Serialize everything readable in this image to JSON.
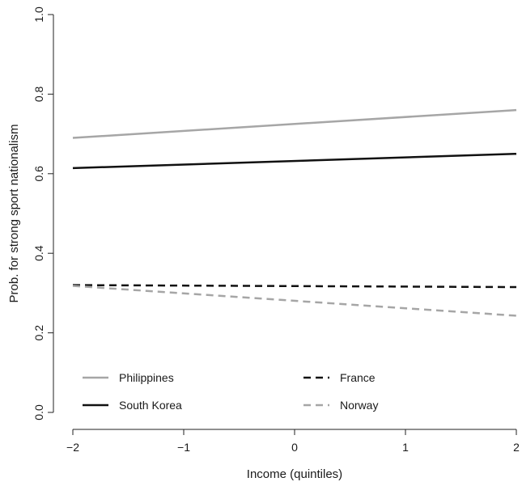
{
  "chart_data": {
    "type": "line",
    "xlabel": "Income (quintiles)",
    "ylabel": "Prob. for strong sport nationalism",
    "xlim": [
      -2,
      2
    ],
    "ylim": [
      0,
      1
    ],
    "x_ticks": [
      -2,
      -1,
      0,
      1,
      2
    ],
    "x_tick_labels": [
      "−2",
      "−1",
      "0",
      "1",
      "2"
    ],
    "y_ticks": [
      0,
      0.2,
      0.4,
      0.6,
      0.8,
      1
    ],
    "y_tick_labels": [
      "0.0",
      "0.2",
      "0.4",
      "0.6",
      "0.8",
      "1.0"
    ],
    "grid": false,
    "legend_position": "bottom",
    "series": [
      {
        "name": "Philippines",
        "x": [
          -2,
          2
        ],
        "values": [
          0.69,
          0.76
        ],
        "color": "#a6a6a6",
        "dash": "solid"
      },
      {
        "name": "South Korea",
        "x": [
          -2,
          2
        ],
        "values": [
          0.614,
          0.65
        ],
        "color": "#111111",
        "dash": "solid"
      },
      {
        "name": "France",
        "x": [
          -2,
          2
        ],
        "values": [
          0.32,
          0.315
        ],
        "color": "#111111",
        "dash": "dashed"
      },
      {
        "name": "Norway",
        "x": [
          -2,
          2
        ],
        "values": [
          0.318,
          0.243
        ],
        "color": "#a6a6a6",
        "dash": "dashed"
      }
    ]
  }
}
